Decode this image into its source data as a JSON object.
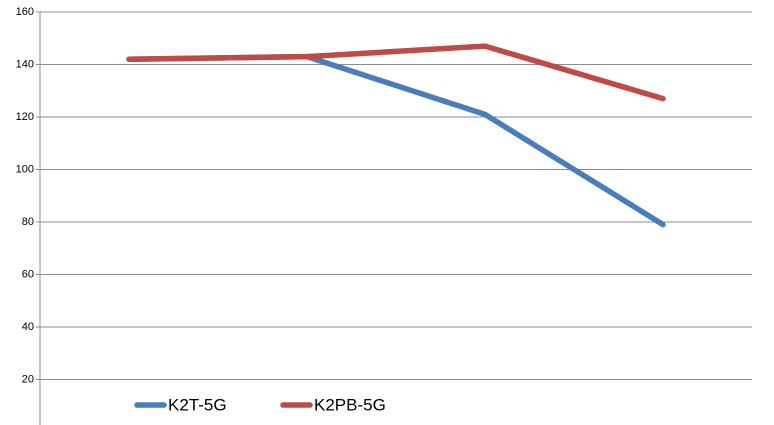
{
  "chart_data": {
    "type": "line",
    "categories": [
      null,
      null,
      null,
      null
    ],
    "series": [
      {
        "name": "K2T-5G",
        "color": "#4a7ebb",
        "values": [
          142,
          143,
          121,
          79
        ]
      },
      {
        "name": "K2PB-5G",
        "color": "#be4b48",
        "values": [
          142,
          143,
          147,
          127
        ]
      }
    ],
    "ylim": [
      0,
      160
    ],
    "yticks": [
      20,
      40,
      60,
      80,
      100,
      120,
      140,
      160
    ],
    "grid": true,
    "legend": "bottom"
  }
}
